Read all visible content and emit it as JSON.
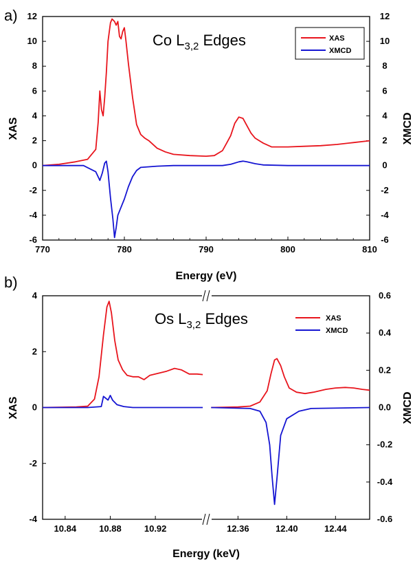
{
  "chart_data": [
    {
      "type": "line",
      "panel_label": "a)",
      "title": "Co L",
      "title_sub": "3,2",
      "title_suffix": " Edges",
      "xlabel": "Energy (eV)",
      "ylabel": "XAS",
      "y2label": "XMCD",
      "xlim": [
        770,
        810
      ],
      "ylim": [
        -6,
        12
      ],
      "y2lim": [
        -6,
        12
      ],
      "xticks": [
        "770",
        "780",
        "790",
        "800",
        "810"
      ],
      "yticks": [
        "-6",
        "-4",
        "-2",
        "0",
        "2",
        "4",
        "6",
        "8",
        "10",
        "12"
      ],
      "y2ticks": [
        "-6",
        "-4",
        "-2",
        "0",
        "2",
        "4",
        "6",
        "8",
        "10",
        "12"
      ],
      "legend_position": "top-right",
      "series": [
        {
          "name": "XAS",
          "color": "#e8141c",
          "axis": "left",
          "points": [
            [
              770,
              0
            ],
            [
              772,
              0.1
            ],
            [
              774,
              0.3
            ],
            [
              775.5,
              0.5
            ],
            [
              776.5,
              1.3
            ],
            [
              776.8,
              3.5
            ],
            [
              777,
              6.0
            ],
            [
              777.2,
              4.5
            ],
            [
              777.4,
              4.0
            ],
            [
              777.6,
              5.5
            ],
            [
              777.8,
              7.5
            ],
            [
              778,
              10.0
            ],
            [
              778.3,
              11.5
            ],
            [
              778.5,
              11.8
            ],
            [
              778.8,
              11.6
            ],
            [
              779,
              11.3
            ],
            [
              779.2,
              11.6
            ],
            [
              779.4,
              10.4
            ],
            [
              779.6,
              10.2
            ],
            [
              779.8,
              10.8
            ],
            [
              780,
              11.1
            ],
            [
              780.2,
              10.0
            ],
            [
              780.5,
              8.2
            ],
            [
              781,
              5.5
            ],
            [
              781.5,
              3.3
            ],
            [
              782,
              2.5
            ],
            [
              782.5,
              2.2
            ],
            [
              783,
              2.0
            ],
            [
              784,
              1.4
            ],
            [
              785,
              1.1
            ],
            [
              786,
              0.9
            ],
            [
              788,
              0.8
            ],
            [
              790,
              0.75
            ],
            [
              791,
              0.8
            ],
            [
              792,
              1.2
            ],
            [
              792.5,
              1.8
            ],
            [
              793,
              2.4
            ],
            [
              793.5,
              3.4
            ],
            [
              794,
              3.9
            ],
            [
              794.5,
              3.8
            ],
            [
              795,
              3.2
            ],
            [
              795.5,
              2.6
            ],
            [
              796,
              2.2
            ],
            [
              797,
              1.8
            ],
            [
              798,
              1.5
            ],
            [
              800,
              1.5
            ],
            [
              802,
              1.55
            ],
            [
              804,
              1.6
            ],
            [
              806,
              1.7
            ],
            [
              808,
              1.85
            ],
            [
              810,
              2.0
            ]
          ]
        },
        {
          "name": "XMCD",
          "color": "#1414d2",
          "axis": "right",
          "points": [
            [
              770,
              0
            ],
            [
              775,
              0
            ],
            [
              776.5,
              -0.5
            ],
            [
              777,
              -1.2
            ],
            [
              777.3,
              -0.6
            ],
            [
              777.6,
              0.2
            ],
            [
              777.8,
              0.35
            ],
            [
              778,
              -0.5
            ],
            [
              778.3,
              -2.6
            ],
            [
              778.6,
              -4.3
            ],
            [
              778.8,
              -5.8
            ],
            [
              779,
              -5.0
            ],
            [
              779.2,
              -4.0
            ],
            [
              779.5,
              -3.5
            ],
            [
              780,
              -2.7
            ],
            [
              780.5,
              -1.7
            ],
            [
              781,
              -0.9
            ],
            [
              781.5,
              -0.4
            ],
            [
              782,
              -0.15
            ],
            [
              784,
              -0.05
            ],
            [
              786,
              0
            ],
            [
              792,
              0
            ],
            [
              793,
              0.1
            ],
            [
              794,
              0.3
            ],
            [
              794.5,
              0.35
            ],
            [
              795,
              0.3
            ],
            [
              796,
              0.15
            ],
            [
              797,
              0.05
            ],
            [
              800,
              0
            ],
            [
              810,
              0
            ]
          ]
        }
      ]
    },
    {
      "type": "line",
      "panel_label": "b)",
      "title": "Os L",
      "title_sub": "3,2",
      "title_suffix": " Edges",
      "xlabel": "Energy (keV)",
      "ylabel": "XAS",
      "y2label": "XMCD",
      "x_axis_break": true,
      "x_segments": [
        [
          10.82,
          10.965
        ],
        [
          12.335,
          12.468
        ]
      ],
      "ylim": [
        -4,
        4
      ],
      "y2lim": [
        -0.6,
        0.6
      ],
      "xticks": [
        "10.84",
        "10.88",
        "10.92",
        "12.36",
        "12.40",
        "12.44"
      ],
      "yticks": [
        "-4",
        "-2",
        "0",
        "2",
        "4"
      ],
      "y2ticks": [
        "-0.6",
        "-0.4",
        "-0.2",
        "0.0",
        "0.2",
        "0.4",
        "0.6"
      ],
      "legend_position": "top-right",
      "series": [
        {
          "name": "XAS",
          "color": "#e8141c",
          "axis": "left",
          "segments": [
            [
              [
                10.82,
                0
              ],
              [
                10.85,
                0.02
              ],
              [
                10.86,
                0.05
              ],
              [
                10.866,
                0.3
              ],
              [
                10.87,
                1.1
              ],
              [
                10.874,
                2.6
              ],
              [
                10.877,
                3.6
              ],
              [
                10.879,
                3.8
              ],
              [
                10.881,
                3.4
              ],
              [
                10.884,
                2.4
              ],
              [
                10.887,
                1.7
              ],
              [
                10.891,
                1.35
              ],
              [
                10.895,
                1.15
              ],
              [
                10.9,
                1.1
              ],
              [
                10.905,
                1.1
              ],
              [
                10.91,
                1.0
              ],
              [
                10.915,
                1.15
              ],
              [
                10.92,
                1.2
              ],
              [
                10.93,
                1.3
              ],
              [
                10.937,
                1.4
              ],
              [
                10.943,
                1.35
              ],
              [
                10.95,
                1.2
              ],
              [
                10.957,
                1.2
              ],
              [
                10.962,
                1.18
              ]
            ],
            [
              [
                12.338,
                0
              ],
              [
                12.36,
                0.02
              ],
              [
                12.37,
                0.05
              ],
              [
                12.378,
                0.2
              ],
              [
                12.384,
                0.6
              ],
              [
                12.387,
                1.2
              ],
              [
                12.39,
                1.7
              ],
              [
                12.392,
                1.75
              ],
              [
                12.395,
                1.5
              ],
              [
                12.398,
                1.1
              ],
              [
                12.402,
                0.7
              ],
              [
                12.408,
                0.55
              ],
              [
                12.415,
                0.5
              ],
              [
                12.422,
                0.55
              ],
              [
                12.432,
                0.65
              ],
              [
                12.44,
                0.7
              ],
              [
                12.448,
                0.72
              ],
              [
                12.455,
                0.7
              ],
              [
                12.462,
                0.65
              ],
              [
                12.468,
                0.62
              ]
            ]
          ]
        },
        {
          "name": "XMCD",
          "color": "#1414d2",
          "axis": "right",
          "segments": [
            [
              [
                10.82,
                0
              ],
              [
                10.86,
                0
              ],
              [
                10.872,
                0.005
              ],
              [
                10.874,
                0.06
              ],
              [
                10.876,
                0.05
              ],
              [
                10.878,
                0.04
              ],
              [
                10.88,
                0.065
              ],
              [
                10.882,
                0.04
              ],
              [
                10.886,
                0.015
              ],
              [
                10.892,
                0.005
              ],
              [
                10.9,
                0
              ],
              [
                10.962,
                0
              ]
            ],
            [
              [
                12.338,
                0
              ],
              [
                12.37,
                -0.005
              ],
              [
                12.378,
                -0.02
              ],
              [
                12.383,
                -0.08
              ],
              [
                12.386,
                -0.2
              ],
              [
                12.388,
                -0.37
              ],
              [
                12.39,
                -0.52
              ],
              [
                12.392,
                -0.38
              ],
              [
                12.395,
                -0.15
              ],
              [
                12.4,
                -0.06
              ],
              [
                12.41,
                -0.02
              ],
              [
                12.42,
                -0.005
              ],
              [
                12.468,
                0
              ]
            ]
          ]
        }
      ]
    }
  ]
}
